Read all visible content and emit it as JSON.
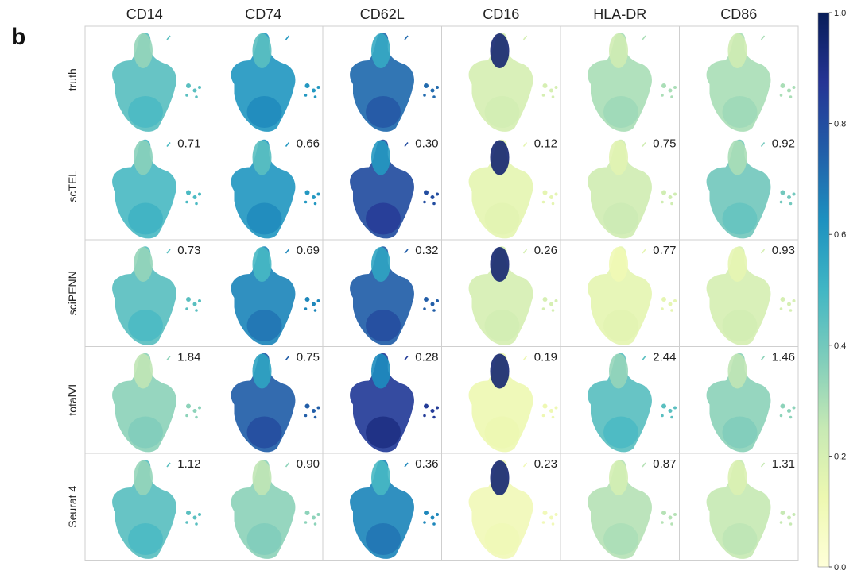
{
  "panel_label": "b",
  "chart_data": {
    "type": "heatmap",
    "title": "",
    "columns": [
      "CD14",
      "CD74",
      "CD62L",
      "CD16",
      "HLA-DR",
      "CD86"
    ],
    "rows": [
      "truth",
      "scTEL",
      "sciPENN",
      "totalVI",
      "Seurat 4"
    ],
    "scores": {
      "truth": [
        null,
        null,
        null,
        null,
        null,
        null
      ],
      "scTEL": [
        "0.71",
        "0.66",
        "0.30",
        "0.12",
        "0.75",
        "0.92"
      ],
      "sciPENN": [
        "0.73",
        "0.69",
        "0.32",
        "0.26",
        "0.77",
        "0.93"
      ],
      "totalVI": [
        "1.84",
        "0.75",
        "0.28",
        "0.19",
        "2.44",
        "1.46"
      ],
      "Seurat 4": [
        "1.12",
        "0.90",
        "0.36",
        "0.23",
        "0.87",
        "1.31"
      ]
    },
    "intensity": {
      "truth": [
        0.45,
        0.6,
        0.72,
        0.2,
        0.3,
        0.3
      ],
      "scTEL": [
        0.48,
        0.6,
        0.8,
        0.15,
        0.22,
        0.4
      ],
      "sciPENN": [
        0.45,
        0.65,
        0.75,
        0.2,
        0.15,
        0.2
      ],
      "totalVI": [
        0.35,
        0.75,
        0.85,
        0.12,
        0.45,
        0.35
      ],
      "Seurat 4": [
        0.45,
        0.35,
        0.65,
        0.1,
        0.28,
        0.25
      ]
    },
    "colorbar": {
      "colormap": "YlGnBu",
      "range": [
        0.0,
        1.0
      ],
      "ticks": [
        "0.0",
        "0.2",
        "0.4",
        "0.6",
        "0.8",
        "1.0"
      ]
    },
    "colors": {
      "low": "#ffffd9",
      "mid": "#41b6c4",
      "high": "#081d58",
      "grid": "#cfcfcf"
    }
  }
}
